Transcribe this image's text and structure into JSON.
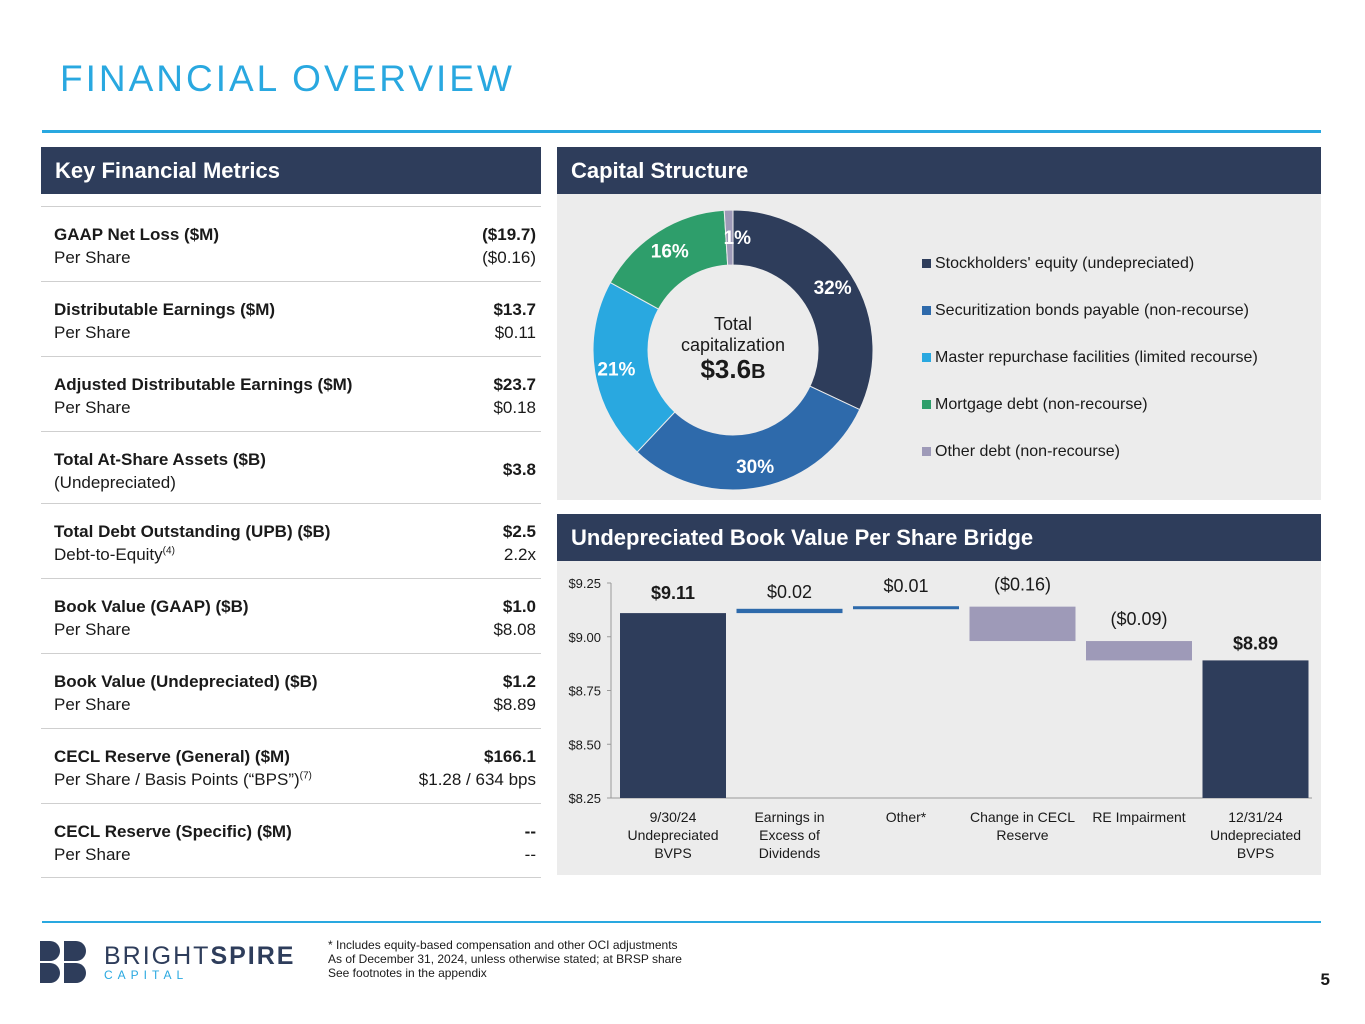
{
  "page": {
    "title": "FINANCIAL OVERVIEW",
    "page_number": "5"
  },
  "metrics_panel": {
    "heading": "Key Financial Metrics",
    "rows": [
      {
        "label1": "GAAP Net Loss ($M)",
        "label2": "Per Share",
        "value1": "($19.7)",
        "value2": "($0.16)"
      },
      {
        "label1": "Distributable Earnings ($M)",
        "label2": "Per Share",
        "value1": "$13.7",
        "value2": "$0.11"
      },
      {
        "label1": "Adjusted Distributable Earnings ($M)",
        "label2": "Per Share",
        "value1": "$23.7",
        "value2": "$0.18"
      },
      {
        "label1": "Total At-Share Assets ($B)",
        "label2": "(Undepreciated)",
        "value1": "$3.8"
      },
      {
        "label1": "Total Debt Outstanding (UPB) ($B)",
        "label2": "Debt-to-Equity",
        "label2_sup": "(4)",
        "value1": "$2.5",
        "value2": "2.2x"
      },
      {
        "label1": "Book Value (GAAP) ($B)",
        "label2": "Per Share",
        "value1": "$1.0",
        "value2": "$8.08"
      },
      {
        "label1": "Book Value (Undepreciated) ($B)",
        "label2": "Per Share",
        "value1": "$1.2",
        "value2": "$8.89"
      },
      {
        "label1": "CECL Reserve (General) ($M)",
        "label2": "Per Share / Basis Points (“BPS”)",
        "label2_sup": "(7)",
        "value1": "$166.1",
        "value2": "$1.28 / 634 bps"
      },
      {
        "label1": "CECL Reserve (Specific) ($M)",
        "label2": "Per Share",
        "value1": "--",
        "value2": "--"
      }
    ]
  },
  "capital_panel": {
    "heading": "Capital Structure",
    "center_label": "Total capitalization",
    "center_line1": "Total",
    "center_line2": "capitalization",
    "center_value": "$3.6",
    "center_unit": "B"
  },
  "bridge_panel": {
    "heading": "Undepreciated Book Value Per Share Bridge"
  },
  "chart_data": [
    {
      "type": "pie",
      "title": "Capital Structure",
      "categories": [
        "Stockholders' equity (undepreciated)",
        "Securitization bonds payable (non-recourse)",
        "Master repurchase facilities (limited recourse)",
        "Mortgage debt (non-recourse)",
        "Other debt (non-recourse)"
      ],
      "values": [
        32,
        30,
        21,
        16,
        1
      ],
      "labels": [
        "32%",
        "30%",
        "21%",
        "16%",
        "1%"
      ],
      "colors": [
        "#2e3d5b",
        "#2e6aab",
        "#29a8e0",
        "#2e9e6b",
        "#9e9ab8"
      ],
      "legend": "right"
    },
    {
      "type": "bar",
      "title": "Undepreciated Book Value Per Share Bridge",
      "categories": [
        "9/30/24 Undepreciated BVPS",
        "Earnings in Excess of Dividends",
        "Other*",
        "Change in CECL Reserve",
        "RE Impairment",
        "12/31/24 Undepreciated BVPS"
      ],
      "category_lines": [
        [
          "9/30/24",
          "Undepreciated",
          "BVPS"
        ],
        [
          "Earnings in",
          "Excess of",
          "Dividends"
        ],
        [
          "Other*"
        ],
        [
          "Change in CECL",
          "Reserve"
        ],
        [
          "RE Impairment"
        ],
        [
          "12/31/24",
          "Undepreciated",
          "BVPS"
        ]
      ],
      "values": [
        9.11,
        0.02,
        0.01,
        -0.16,
        -0.09,
        8.89
      ],
      "bar_kind": [
        "total",
        "delta",
        "delta",
        "delta",
        "delta",
        "total"
      ],
      "data_labels": [
        "$9.11",
        "$0.02",
        "$0.01",
        "($0.16)",
        "($0.09)",
        "$8.89"
      ],
      "ylim": [
        8.25,
        9.25
      ],
      "yticks": [
        8.25,
        8.5,
        8.75,
        9.0,
        9.25
      ],
      "ytick_labels": [
        "$8.25",
        "$8.50",
        "$8.75",
        "$9.00",
        "$9.25"
      ],
      "colors": {
        "total": "#2e3d5b",
        "increase": "#2e6aab",
        "decrease": "#9e9ab8"
      }
    }
  ],
  "footnotes": [
    "* Includes equity-based compensation and other OCI adjustments",
    "As of December 31, 2024, unless otherwise stated; at BRSP share",
    "See footnotes in the appendix"
  ],
  "logo": {
    "word1": "BRIGHT",
    "word2": "SPIRE",
    "sub": "CAPITAL"
  }
}
